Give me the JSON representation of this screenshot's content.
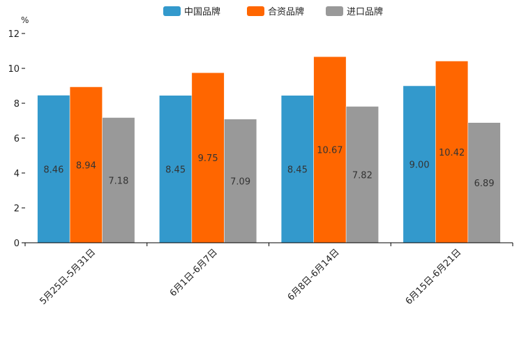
{
  "chart_data": {
    "type": "bar",
    "title": "",
    "xlabel": "",
    "ylabel": "%",
    "ylim": [
      0,
      12
    ],
    "yticks": [
      0,
      2,
      4,
      6,
      8,
      10,
      12
    ],
    "categories": [
      "5月25日-5月31日",
      "6月1日-6月7日",
      "6月8日-6月14日",
      "6月15日-6月21日"
    ],
    "series": [
      {
        "name": "中国品牌",
        "color": "#3399CC",
        "values": [
          8.46,
          8.45,
          8.45,
          9.0
        ],
        "labels": [
          "8.46",
          "8.45",
          "8.45",
          "9.00"
        ]
      },
      {
        "name": "合资品牌",
        "color": "#FF6600",
        "values": [
          8.94,
          9.75,
          10.67,
          10.42
        ],
        "labels": [
          "8.94",
          "9.75",
          "10.67",
          "10.42"
        ]
      },
      {
        "name": "进口品牌",
        "color": "#999999",
        "values": [
          7.18,
          7.09,
          7.82,
          6.89
        ],
        "labels": [
          "7.18",
          "7.09",
          "7.82",
          "6.89"
        ]
      }
    ],
    "legend_position": "top-center",
    "grid": false
  }
}
